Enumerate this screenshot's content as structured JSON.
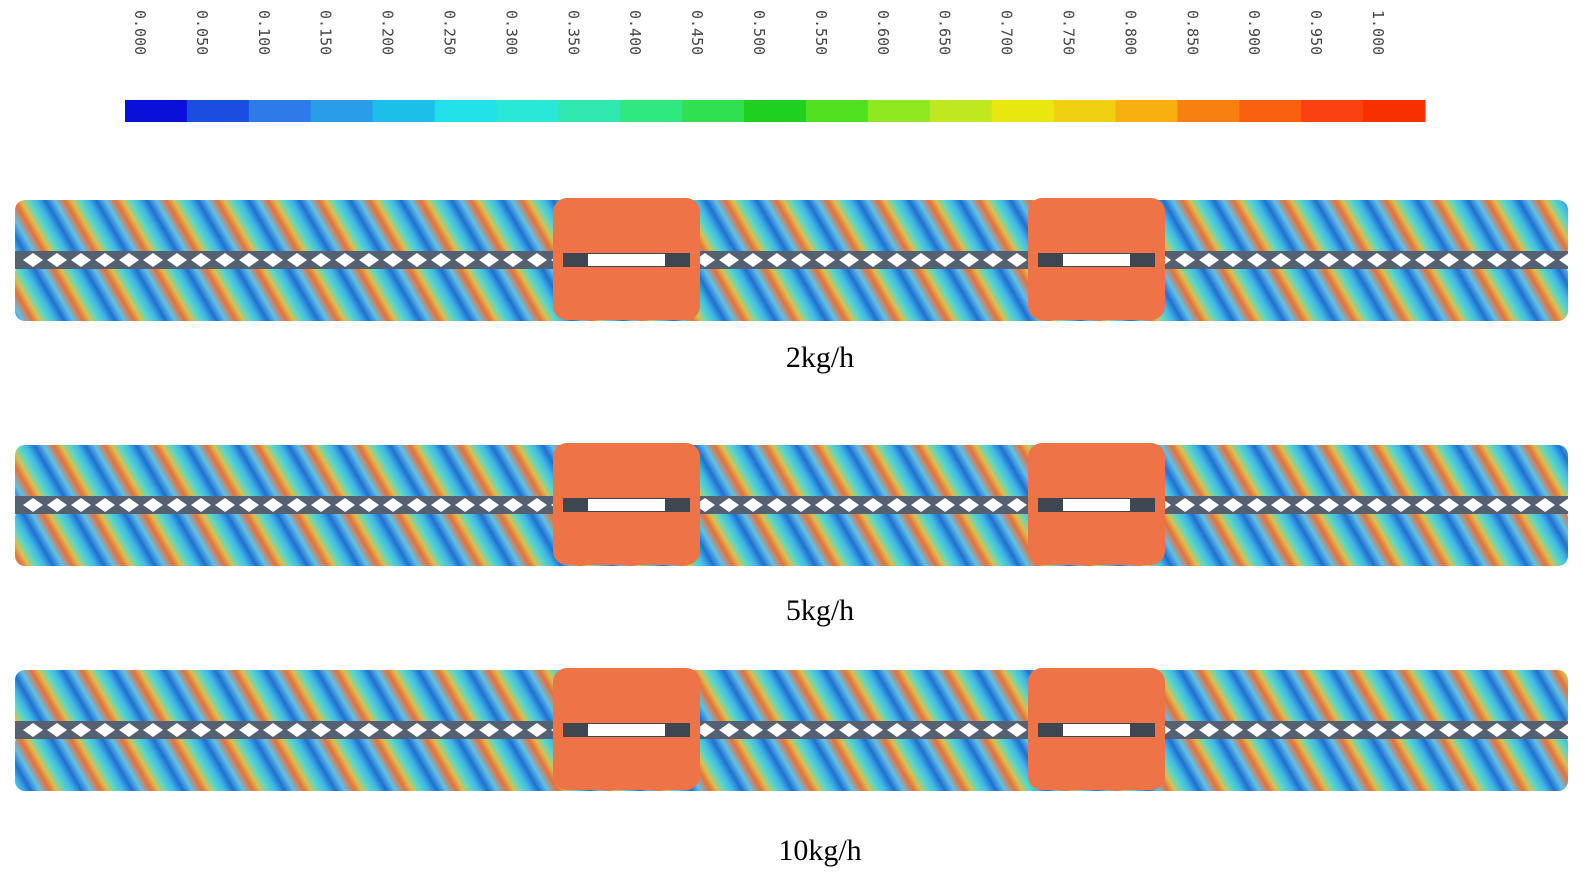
{
  "colorbar": {
    "ticks": [
      "0.000",
      "0.050",
      "0.100",
      "0.150",
      "0.200",
      "0.250",
      "0.300",
      "0.350",
      "0.400",
      "0.450",
      "0.500",
      "0.550",
      "0.600",
      "0.650",
      "0.700",
      "0.750",
      "0.800",
      "0.850",
      "0.900",
      "0.950",
      "1.000"
    ],
    "colors": [
      "#0a10d8",
      "#1a4de0",
      "#2d7ae8",
      "#2a9de8",
      "#1cbfe8",
      "#20e0e8",
      "#2ae8d8",
      "#30e8b0",
      "#30e880",
      "#30e050",
      "#20d020",
      "#50e020",
      "#90e820",
      "#c0e820",
      "#e8e810",
      "#f0d010",
      "#f8b010",
      "#f88010",
      "#f86010",
      "#f84010",
      "#f83000"
    ]
  },
  "panels": [
    {
      "caption": "2kg/h"
    },
    {
      "caption": "5kg/h"
    },
    {
      "caption": "10kg/h"
    }
  ]
}
